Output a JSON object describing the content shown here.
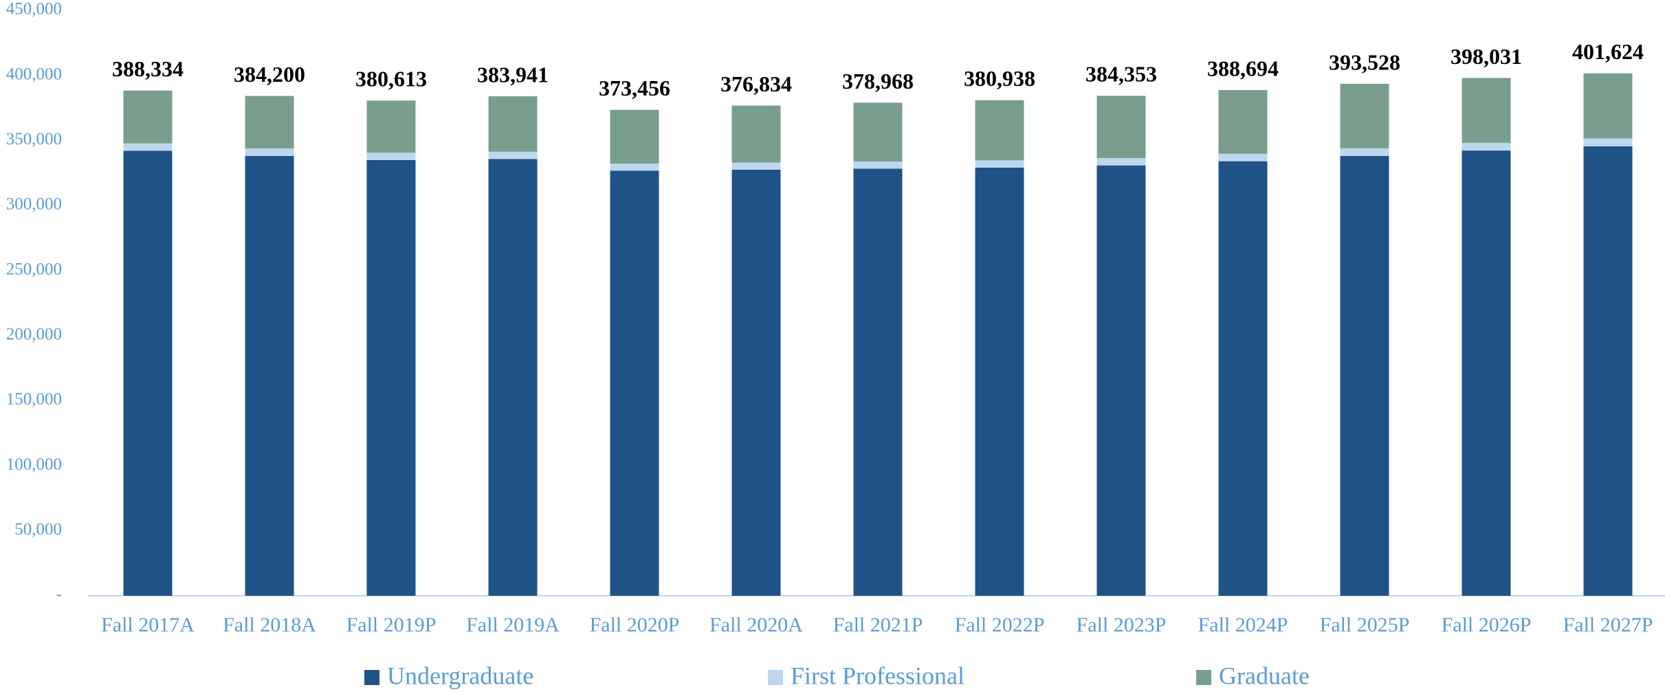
{
  "chart_data": {
    "type": "stacked_bar",
    "categories": [
      "Fall 2017A",
      "Fall 2018A",
      "Fall 2019P",
      "Fall 2019A",
      "Fall 2020P",
      "Fall 2020A",
      "Fall 2021P",
      "Fall 2022P",
      "Fall 2023P",
      "Fall 2024P",
      "Fall 2025P",
      "Fall 2026P",
      "Fall 2027P"
    ],
    "series": [
      {
        "name": "Undergraduate",
        "color": "#1f5287",
        "values": [
          342000,
          338100,
          334900,
          335700,
          326700,
          327500,
          328300,
          329100,
          330800,
          334000,
          338100,
          342200,
          345500
        ]
      },
      {
        "name": "First Professional",
        "color": "#bdd7ee",
        "values": [
          5700,
          5700,
          5600,
          5600,
          5500,
          5500,
          5500,
          5600,
          5600,
          5700,
          5800,
          5900,
          6000
        ]
      },
      {
        "name": "Graduate",
        "color": "#7a9e8e",
        "values": [
          40600,
          40400,
          40100,
          42600,
          41300,
          43800,
          45200,
          46200,
          47900,
          49000,
          49600,
          49900,
          50100
        ]
      }
    ],
    "totals": [
      "388,334",
      "384,200",
      "380,613",
      "383,941",
      "373,456",
      "376,834",
      "378,968",
      "380,938",
      "384,353",
      "388,694",
      "393,528",
      "398,031",
      "401,624"
    ],
    "ylim": [
      0,
      450000
    ],
    "yticks": [
      {
        "value": 0,
        "label": "-"
      },
      {
        "value": 50000,
        "label": "50,000"
      },
      {
        "value": 100000,
        "label": "100,000"
      },
      {
        "value": 150000,
        "label": "150,000"
      },
      {
        "value": 200000,
        "label": "200,000"
      },
      {
        "value": 250000,
        "label": "250,000"
      },
      {
        "value": 300000,
        "label": "300,000"
      },
      {
        "value": 350000,
        "label": "350,000"
      },
      {
        "value": 400000,
        "label": "400,000"
      },
      {
        "value": 450000,
        "label": "450,000"
      }
    ],
    "grid": false,
    "legend": "bottom"
  }
}
